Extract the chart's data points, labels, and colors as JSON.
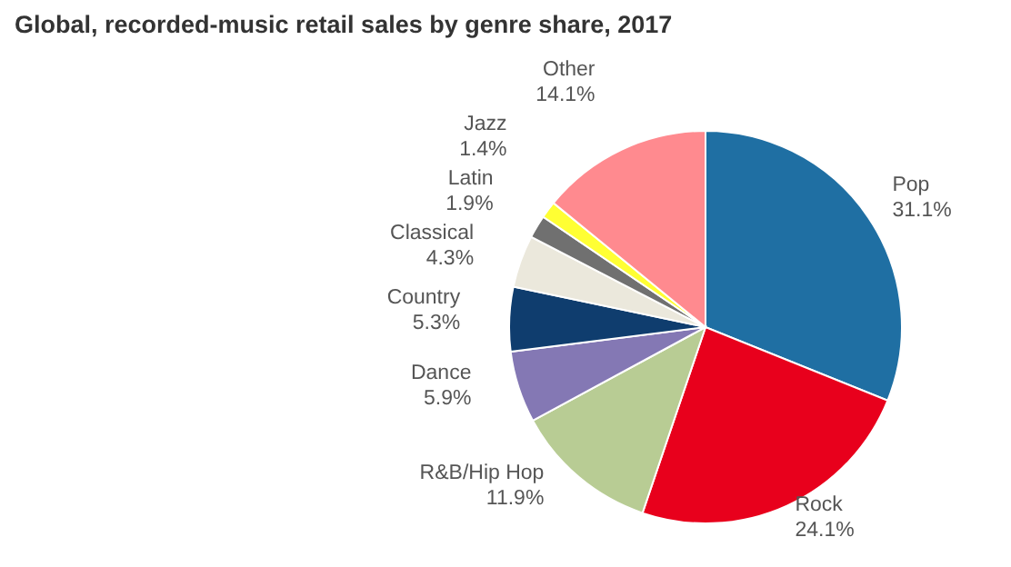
{
  "chart_data": {
    "type": "pie",
    "title": "Global, recorded-music retail sales by genre share, 2017",
    "categories": [
      "Pop",
      "Rock",
      "R&B/Hip Hop",
      "Dance",
      "Country",
      "Classical",
      "Latin",
      "Jazz",
      "Other"
    ],
    "values": [
      31.1,
      24.1,
      11.9,
      5.9,
      5.3,
      4.3,
      1.9,
      1.4,
      14.1
    ],
    "colors": [
      "#1f6fa3",
      "#e8001c",
      "#b8cc94",
      "#8478b4",
      "#0f3d6e",
      "#ebe8dc",
      "#707070",
      "#ffff33",
      "#ff8a8f"
    ],
    "value_labels": [
      "31.1%",
      "24.1%",
      "11.9%",
      "5.9%",
      "5.3%",
      "4.3%",
      "1.9%",
      "1.4%",
      "14.1%"
    ],
    "legend": false
  }
}
